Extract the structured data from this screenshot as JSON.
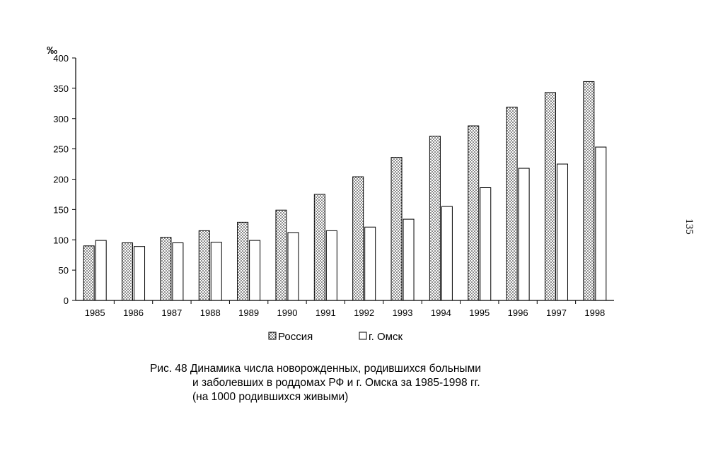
{
  "chart_data": {
    "type": "bar",
    "unit_label": "‰",
    "categories": [
      "1985",
      "1986",
      "1987",
      "1988",
      "1989",
      "1990",
      "1991",
      "1992",
      "1993",
      "1994",
      "1995",
      "1996",
      "1997",
      "1998"
    ],
    "series": [
      {
        "name": "Россия",
        "values": [
          90,
          95,
          104,
          115,
          129,
          149,
          175,
          204,
          236,
          271,
          288,
          319,
          343,
          361
        ],
        "fill": "dotted"
      },
      {
        "name": "г. Омск",
        "values": [
          99,
          89,
          95,
          96,
          99,
          112,
          115,
          121,
          134,
          155,
          186,
          218,
          225,
          253
        ],
        "fill": "white"
      }
    ],
    "ylim": [
      0,
      400
    ],
    "yticks": [
      0,
      50,
      100,
      150,
      200,
      250,
      300,
      350,
      400
    ],
    "legend_position": "bottom",
    "grid": false
  },
  "caption": {
    "line1": "Рис. 48 Динамика числа новорожденных, родившихся больными",
    "line2": "и заболевших в роддомах РФ и г. Омска за 1985-1998 гг.",
    "line3": "(на 1000 родившихся живыми)"
  },
  "page_number": "135"
}
